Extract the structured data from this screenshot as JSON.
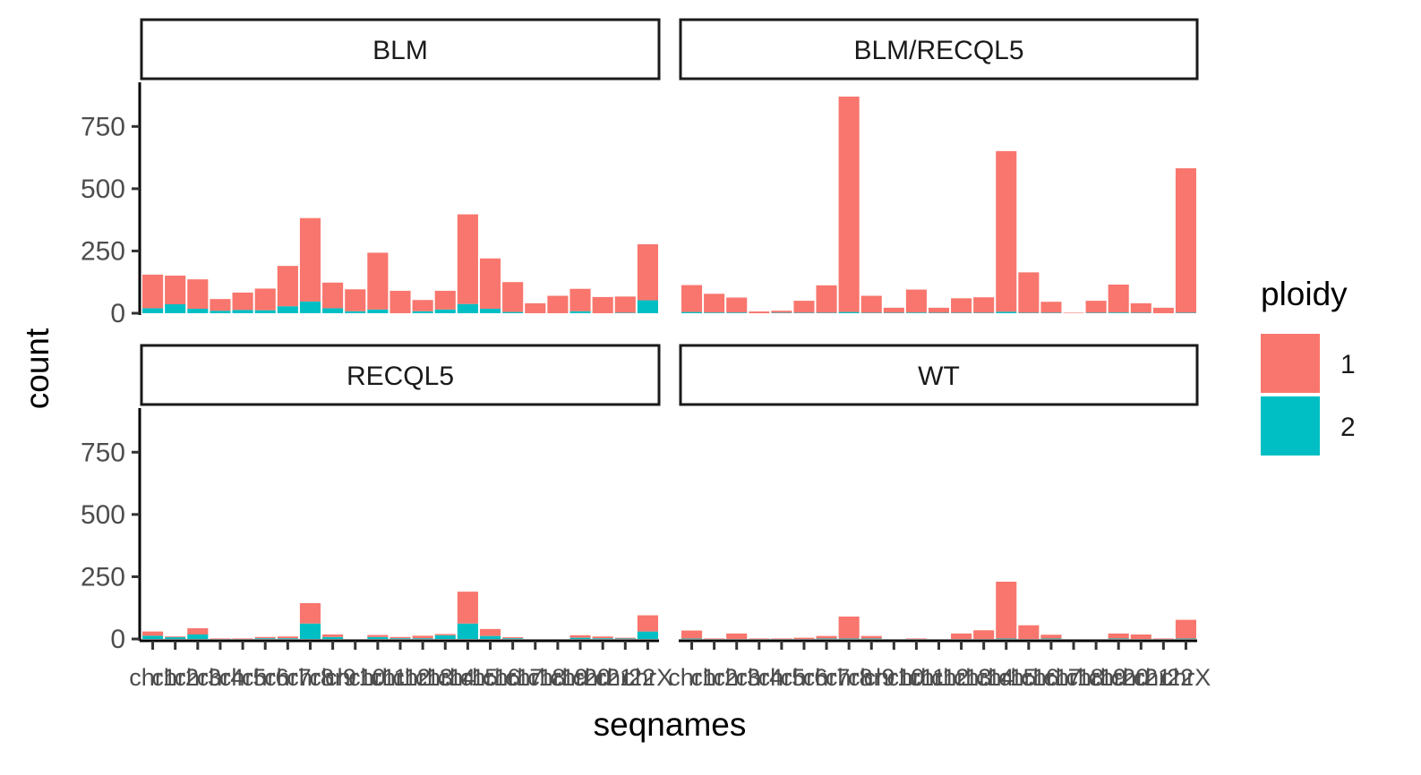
{
  "chart_data": {
    "type": "bar",
    "stacked": true,
    "facet": "wrap",
    "xlabel": "seqnames",
    "ylabel": "count",
    "ylim": [
      0,
      920
    ],
    "yticks": [
      0,
      250,
      500,
      750
    ],
    "grid": false,
    "legend": {
      "title": "ploidy",
      "position": "right",
      "entries": [
        {
          "label": "1",
          "color": "#F8766D"
        },
        {
          "label": "2",
          "color": "#00BFC4"
        }
      ]
    },
    "categories": [
      "chr1",
      "chr2",
      "chr3",
      "chr4",
      "chr5",
      "chr6",
      "chr7",
      "chr8",
      "chr9",
      "chr10",
      "chr11",
      "chr12",
      "chr13",
      "chr14",
      "chr15",
      "chr16",
      "chr17",
      "chr18",
      "chr19",
      "chr20",
      "chr21",
      "chr22",
      "chrX"
    ],
    "panels": [
      {
        "strip": "BLM",
        "series": [
          {
            "name": "1",
            "values": [
              135,
              115,
              118,
              47,
              70,
              87,
              162,
              335,
              103,
              88,
              228,
              90,
              45,
              75,
              360,
              202,
              120,
              40,
              70,
              90,
              65,
              65,
              225
            ]
          },
          {
            "name": "2",
            "values": [
              20,
              36,
              18,
              10,
              13,
              12,
              28,
              47,
              20,
              8,
              15,
              0,
              8,
              15,
              37,
              18,
              5,
              0,
              0,
              8,
              0,
              2,
              52
            ]
          }
        ]
      },
      {
        "strip": "BLM/RECQL5",
        "series": [
          {
            "name": "1",
            "values": [
              108,
              75,
              60,
              7,
              8,
              48,
              110,
              865,
              68,
              20,
              92,
              20,
              58,
              62,
              645,
              162,
              44,
              2,
              48,
              112,
              38,
              22,
              580
            ]
          },
          {
            "name": "2",
            "values": [
              5,
              3,
              3,
              0,
              2,
              2,
              2,
              5,
              2,
              2,
              3,
              2,
              2,
              2,
              6,
              2,
              2,
              0,
              2,
              3,
              2,
              0,
              2
            ]
          }
        ]
      },
      {
        "strip": "RECQL5",
        "series": [
          {
            "name": "1",
            "values": [
              17,
              3,
              25,
              2,
              2,
              5,
              7,
              82,
              10,
              0,
              8,
              5,
              10,
              5,
              128,
              28,
              4,
              0,
              0,
              10,
              7,
              3,
              65
            ]
          },
          {
            "name": "2",
            "values": [
              13,
              7,
              18,
              0,
              0,
              3,
              3,
              62,
              8,
              0,
              8,
              3,
              3,
              15,
              62,
              12,
              3,
              0,
              0,
              5,
              3,
              2,
              30
            ]
          }
        ]
      },
      {
        "strip": "WT",
        "series": [
          {
            "name": "1",
            "values": [
              32,
              2,
              22,
              2,
              2,
              5,
              10,
              88,
              10,
              0,
              2,
              0,
              22,
              35,
              228,
              55,
              15,
              0,
              0,
              20,
              18,
              2,
              75
            ]
          },
          {
            "name": "2",
            "values": [
              2,
              0,
              0,
              0,
              0,
              0,
              2,
              2,
              2,
              0,
              0,
              0,
              0,
              0,
              2,
              0,
              2,
              0,
              0,
              2,
              0,
              0,
              2
            ]
          }
        ]
      }
    ]
  }
}
